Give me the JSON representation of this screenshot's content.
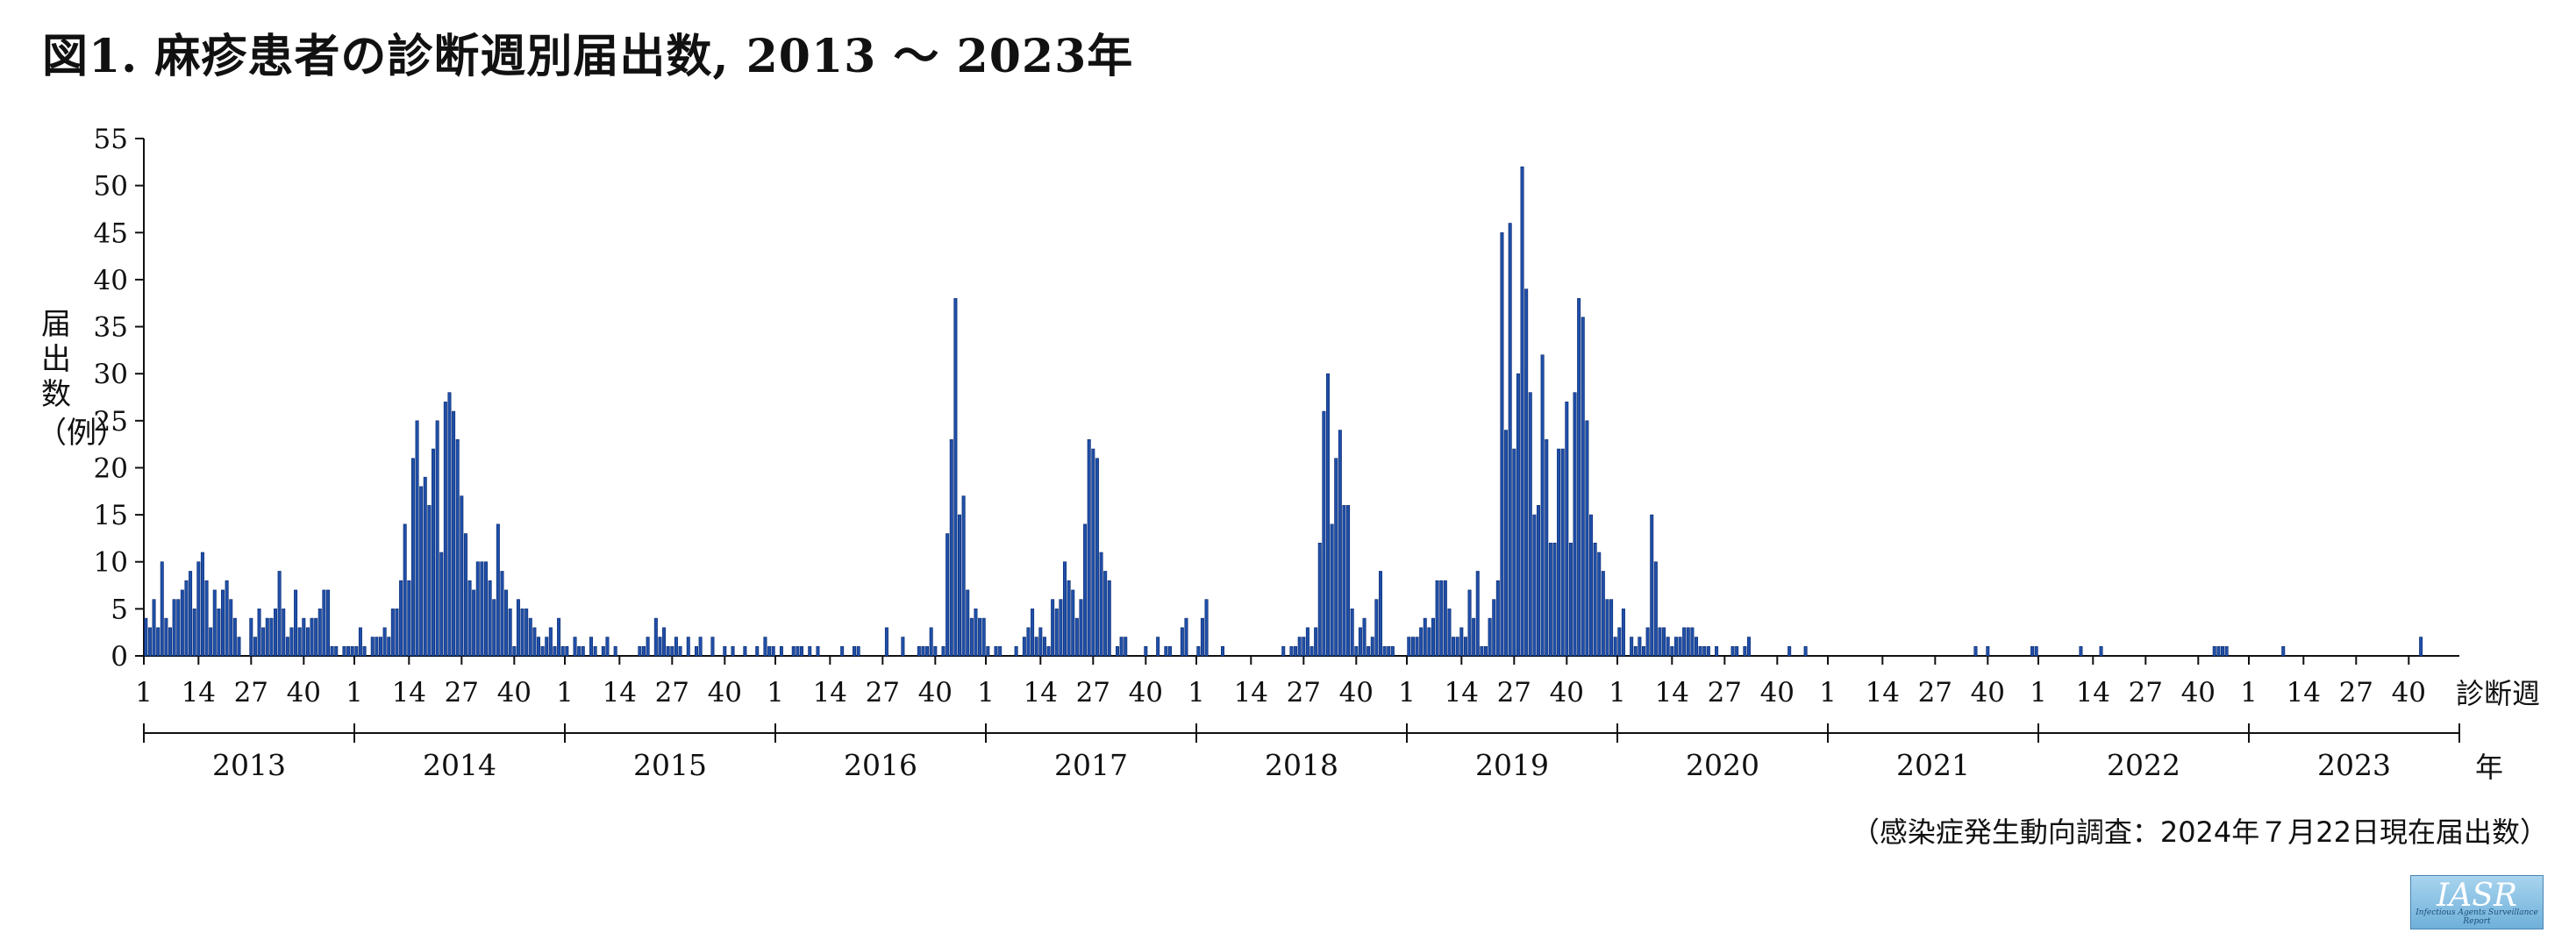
{
  "title": "図1. 麻疹患者の診断週別届出数, 2013 〜 2023年",
  "source_note": "（感染症発生動向調査：2024年７月22日現在届出数）",
  "logo": {
    "main": "IASR",
    "sub": "Infectious Agents Surveillance Report"
  },
  "colors": {
    "bar": "#1f4fa8",
    "bar_stroke": "#0b2a6e",
    "axis": "#111111"
  },
  "chart_data": {
    "type": "bar",
    "title": "図1. 麻疹患者の診断週別届出数, 2013 〜 2023年",
    "ylabel_text": "届出数",
    "ylabel_unit": "（例）",
    "xlabel": "診断週",
    "year_label": "年",
    "ylim": [
      0,
      55
    ],
    "yticks": [
      0,
      5,
      10,
      15,
      20,
      25,
      30,
      35,
      40,
      45,
      50,
      55
    ],
    "week_ticks": [
      1,
      14,
      27,
      40
    ],
    "weeks_per_year": 52,
    "grid": false,
    "years": [
      {
        "year": "2013",
        "values": [
          4,
          3,
          6,
          3,
          10,
          4,
          3,
          6,
          6,
          7,
          8,
          9,
          5,
          10,
          11,
          8,
          3,
          7,
          5,
          7,
          8,
          6,
          4,
          2,
          0,
          0,
          4,
          2,
          5,
          3,
          4,
          4,
          5,
          9,
          5,
          2,
          3,
          7,
          3,
          4,
          3,
          4,
          4,
          5,
          7,
          7,
          1,
          1,
          0,
          1,
          1,
          1
        ]
      },
      {
        "year": "2014",
        "values": [
          1,
          3,
          1,
          0,
          2,
          2,
          2,
          3,
          2,
          5,
          5,
          8,
          14,
          8,
          21,
          25,
          18,
          19,
          16,
          22,
          25,
          11,
          27,
          28,
          26,
          23,
          17,
          13,
          8,
          7,
          10,
          10,
          10,
          8,
          6,
          14,
          9,
          7,
          5,
          1,
          6,
          5,
          5,
          4,
          3,
          2,
          1,
          2,
          3,
          1,
          4,
          1
        ]
      },
      {
        "year": "2015",
        "values": [
          1,
          0,
          2,
          1,
          1,
          0,
          2,
          1,
          0,
          1,
          2,
          0,
          1,
          0,
          0,
          0,
          0,
          0,
          1,
          1,
          2,
          0,
          4,
          2,
          3,
          1,
          1,
          2,
          1,
          0,
          2,
          0,
          1,
          2,
          0,
          0,
          2,
          0,
          0,
          1,
          0,
          1,
          0,
          0,
          1,
          0,
          0,
          1,
          0,
          2,
          1,
          1
        ]
      },
      {
        "year": "2016",
        "values": [
          0,
          1,
          0,
          0,
          1,
          1,
          1,
          0,
          1,
          0,
          1,
          0,
          0,
          0,
          0,
          0,
          1,
          0,
          0,
          1,
          1,
          0,
          0,
          0,
          0,
          0,
          0,
          3,
          0,
          0,
          0,
          2,
          0,
          0,
          0,
          1,
          1,
          1,
          3,
          1,
          0,
          1,
          13,
          23,
          38,
          15,
          17,
          7,
          4,
          5,
          4,
          4
        ]
      },
      {
        "year": "2017",
        "values": [
          1,
          0,
          1,
          1,
          0,
          0,
          0,
          1,
          0,
          2,
          3,
          5,
          2,
          3,
          2,
          1,
          6,
          5,
          6,
          10,
          8,
          7,
          4,
          6,
          14,
          23,
          22,
          21,
          11,
          9,
          8,
          0,
          1,
          2,
          2,
          0,
          0,
          0,
          0,
          1,
          0,
          0,
          2,
          0,
          1,
          1,
          0,
          0,
          3,
          4,
          0,
          0
        ]
      },
      {
        "year": "2018",
        "values": [
          1,
          4,
          6,
          0,
          0,
          0,
          1,
          0,
          0,
          0,
          0,
          0,
          0,
          0,
          0,
          0,
          0,
          0,
          0,
          0,
          0,
          1,
          0,
          1,
          1,
          2,
          2,
          3,
          1,
          3,
          12,
          26,
          30,
          14,
          21,
          24,
          16,
          16,
          5,
          1,
          3,
          4,
          1,
          2,
          6,
          9,
          1,
          1,
          1,
          0,
          0,
          0
        ]
      },
      {
        "year": "2019",
        "values": [
          2,
          2,
          2,
          3,
          4,
          3,
          4,
          8,
          8,
          8,
          5,
          2,
          2,
          3,
          2,
          7,
          4,
          9,
          1,
          1,
          4,
          6,
          8,
          45,
          24,
          46,
          22,
          30,
          52,
          39,
          28,
          15,
          16,
          32,
          23,
          12,
          12,
          22,
          22,
          27,
          12,
          28,
          38,
          36,
          25,
          15,
          12,
          11,
          9,
          6,
          6,
          2
        ]
      },
      {
        "year": "2020",
        "values": [
          3,
          5,
          0,
          2,
          1,
          2,
          1,
          3,
          15,
          10,
          3,
          3,
          2,
          1,
          2,
          2,
          3,
          3,
          3,
          2,
          1,
          1,
          1,
          0,
          1,
          0,
          0,
          0,
          1,
          1,
          0,
          1,
          2,
          0,
          0,
          0,
          0,
          0,
          0,
          0,
          0,
          0,
          1,
          0,
          0,
          0,
          1,
          0,
          0,
          0,
          0,
          0
        ]
      },
      {
        "year": "2021",
        "values": [
          0,
          0,
          0,
          0,
          0,
          0,
          0,
          0,
          0,
          0,
          0,
          0,
          0,
          0,
          0,
          0,
          0,
          0,
          0,
          0,
          0,
          0,
          0,
          0,
          0,
          0,
          0,
          0,
          0,
          0,
          0,
          0,
          0,
          0,
          0,
          0,
          1,
          0,
          0,
          1,
          0,
          0,
          0,
          0,
          0,
          0,
          0,
          0,
          0,
          0,
          1,
          1
        ]
      },
      {
        "year": "2022",
        "values": [
          0,
          0,
          0,
          0,
          0,
          0,
          0,
          0,
          0,
          0,
          1,
          0,
          0,
          0,
          0,
          1,
          0,
          0,
          0,
          0,
          0,
          0,
          0,
          0,
          0,
          0,
          0,
          0,
          0,
          0,
          0,
          0,
          0,
          0,
          0,
          0,
          0,
          0,
          0,
          0,
          0,
          0,
          0,
          1,
          1,
          1,
          1,
          0,
          0,
          0,
          0,
          0
        ]
      },
      {
        "year": "2023",
        "values": [
          0,
          0,
          0,
          0,
          0,
          0,
          0,
          0,
          1,
          0,
          0,
          0,
          0,
          0,
          0,
          0,
          0,
          0,
          0,
          0,
          0,
          0,
          0,
          0,
          0,
          0,
          0,
          0,
          0,
          0,
          0,
          0,
          0,
          0,
          0,
          0,
          0,
          0,
          0,
          0,
          0,
          0,
          2,
          0,
          0,
          0,
          0,
          0,
          0,
          0,
          0,
          0
        ]
      }
    ]
  }
}
